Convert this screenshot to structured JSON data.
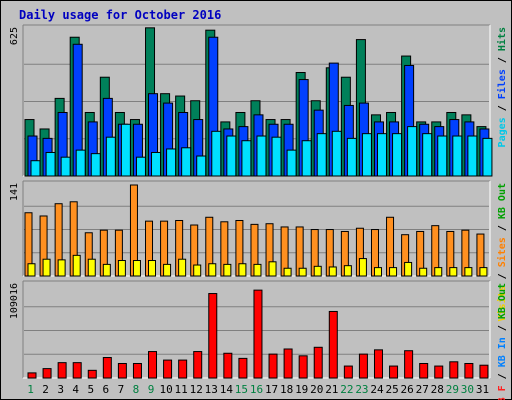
{
  "chart_data": [
    {
      "type": "bar",
      "title": "Daily usage for October 2016",
      "panel": "top",
      "max_label": "625",
      "ylim": [
        0,
        625
      ],
      "grid": true,
      "right_label": [
        "Pages",
        "Files",
        "Hits"
      ],
      "right_label_colors": [
        "#00c8e8",
        "#0040ff",
        "#008040"
      ],
      "categories": [
        "1",
        "2",
        "3",
        "4",
        "5",
        "6",
        "7",
        "8",
        "9",
        "10",
        "11",
        "12",
        "13",
        "14",
        "15",
        "16",
        "17",
        "18",
        "19",
        "20",
        "21",
        "22",
        "23",
        "24",
        "25",
        "26",
        "27",
        "28",
        "29",
        "30",
        "31"
      ],
      "series": [
        {
          "name": "Hits",
          "color": "#00805a",
          "values": [
            240,
            200,
            330,
            590,
            270,
            420,
            270,
            240,
            630,
            350,
            340,
            320,
            620,
            230,
            270,
            320,
            240,
            240,
            440,
            320,
            460,
            420,
            580,
            260,
            270,
            510,
            230,
            230,
            270,
            260,
            210
          ]
        },
        {
          "name": "Files",
          "color": "#0040ff",
          "values": [
            170,
            160,
            270,
            560,
            230,
            330,
            220,
            220,
            350,
            310,
            270,
            240,
            590,
            200,
            210,
            260,
            220,
            220,
            410,
            280,
            480,
            300,
            310,
            230,
            230,
            470,
            220,
            210,
            240,
            230,
            200
          ]
        },
        {
          "name": "Pages",
          "color": "#00e0ff",
          "values": [
            65,
            100,
            80,
            110,
            95,
            165,
            220,
            80,
            100,
            115,
            120,
            85,
            190,
            170,
            150,
            170,
            165,
            110,
            150,
            180,
            190,
            160,
            180,
            180,
            180,
            210,
            180,
            170,
            170,
            170,
            160
          ]
        }
      ]
    },
    {
      "type": "bar",
      "panel": "middle",
      "max_label": "141",
      "ylim": [
        0,
        141
      ],
      "grid": true,
      "right_label": [
        "Visits",
        "Sites",
        "KB Out"
      ],
      "right_label_colors": [
        "#f0d000",
        "#ff8000",
        "#00a000"
      ],
      "categories": [
        "1",
        "2",
        "3",
        "4",
        "5",
        "6",
        "7",
        "8",
        "9",
        "10",
        "11",
        "12",
        "13",
        "14",
        "15",
        "16",
        "17",
        "18",
        "19",
        "20",
        "21",
        "22",
        "23",
        "24",
        "25",
        "26",
        "27",
        "28",
        "29",
        "30",
        "31"
      ],
      "series": [
        {
          "name": "Visits",
          "color": "#ff9020",
          "values": [
            98,
            93,
            112,
            115,
            67,
            71,
            71,
            141,
            85,
            85,
            86,
            79,
            91,
            84,
            86,
            80,
            81,
            76,
            76,
            72,
            72,
            69,
            74,
            72,
            91,
            64,
            69,
            78,
            69,
            71,
            65
          ]
        },
        {
          "name": "Sites",
          "color": "#ffff00",
          "values": [
            19,
            26,
            25,
            32,
            26,
            18,
            24,
            24,
            24,
            18,
            26,
            17,
            19,
            18,
            19,
            18,
            22,
            12,
            12,
            15,
            14,
            16,
            27,
            13,
            13,
            21,
            12,
            13,
            13,
            13,
            13
          ]
        }
      ]
    },
    {
      "type": "bar",
      "panel": "bottom",
      "max_label": "109016",
      "ylim": [
        0,
        109016
      ],
      "grid": true,
      "right_label": [
        "KB F",
        "KB In",
        "KB Out"
      ],
      "right_label_colors": [
        "#ff2020",
        "#0080ff",
        "#00a000"
      ],
      "categories": [
        "1",
        "2",
        "3",
        "4",
        "5",
        "6",
        "7",
        "8",
        "9",
        "10",
        "11",
        "12",
        "13",
        "14",
        "15",
        "16",
        "17",
        "18",
        "19",
        "20",
        "21",
        "22",
        "23",
        "24",
        "25",
        "26",
        "27",
        "28",
        "29",
        "30",
        "31"
      ],
      "series": [
        {
          "name": "KB F",
          "color": "#ff0000",
          "values": [
            6000,
            11000,
            18000,
            18000,
            9000,
            24000,
            17000,
            17000,
            31000,
            21000,
            21000,
            31000,
            99000,
            29000,
            23000,
            103000,
            28000,
            34000,
            26000,
            36000,
            78000,
            14000,
            28000,
            33000,
            14000,
            32000,
            17000,
            14000,
            19000,
            17000,
            15000
          ]
        }
      ]
    }
  ],
  "x_axis": {
    "labels": [
      "1",
      "2",
      "3",
      "4",
      "5",
      "6",
      "7",
      "8",
      "9",
      "10",
      "11",
      "12",
      "13",
      "14",
      "15",
      "16",
      "17",
      "18",
      "19",
      "20",
      "21",
      "22",
      "23",
      "24",
      "25",
      "26",
      "27",
      "28",
      "29",
      "30",
      "31"
    ],
    "weekend_days": [
      "1",
      "8",
      "9",
      "15",
      "16",
      "22",
      "23",
      "29",
      "30"
    ],
    "weekday_color": "#000000",
    "weekend_color": "#008040"
  }
}
